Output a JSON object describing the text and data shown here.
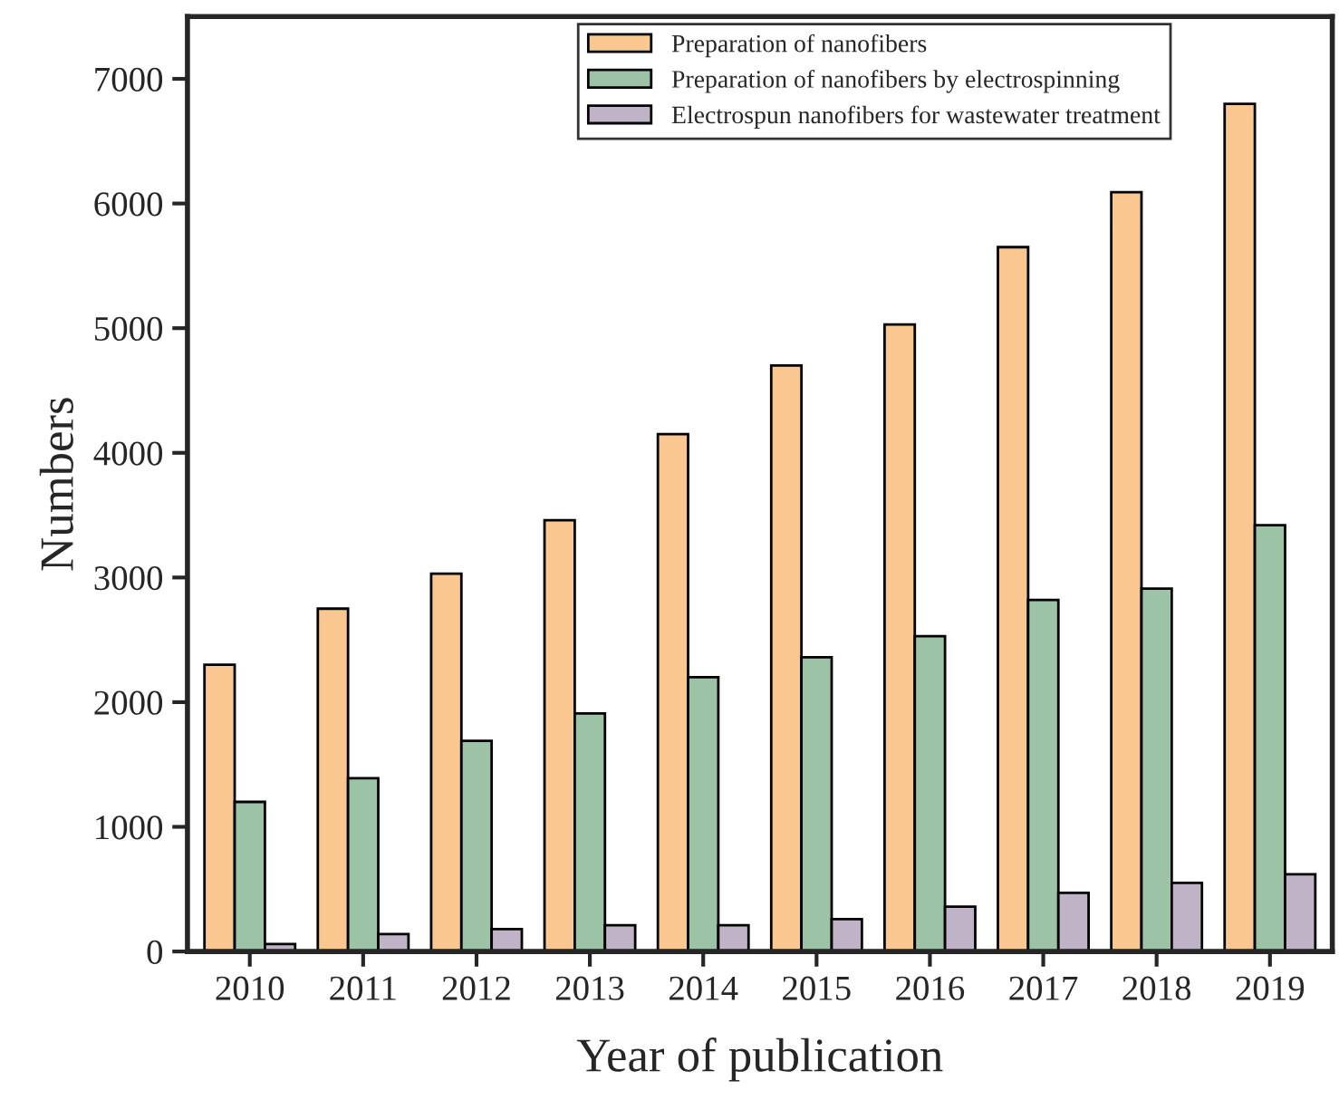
{
  "chart_data": {
    "type": "bar",
    "xlabel": "Year of publication",
    "ylabel": "Numbers",
    "categories": [
      "2010",
      "2011",
      "2012",
      "2013",
      "2014",
      "2015",
      "2016",
      "2017",
      "2018",
      "2019"
    ],
    "series": [
      {
        "name": "Preparation of nanofibers",
        "color": "#f9c78f",
        "values": [
          2300,
          2750,
          3030,
          3460,
          4150,
          4700,
          5030,
          5650,
          6090,
          6800
        ]
      },
      {
        "name": "Preparation of nanofibers by electrospinning",
        "color": "#9dc3a6",
        "values": [
          1200,
          1390,
          1690,
          1910,
          2200,
          2360,
          2530,
          2820,
          2910,
          3420
        ]
      },
      {
        "name": "Electrospun nanofibers for wastewater treatment",
        "color": "#c0b3c8",
        "values": [
          60,
          140,
          180,
          210,
          210,
          260,
          360,
          470,
          550,
          620
        ]
      }
    ],
    "ylim": [
      0,
      7500
    ],
    "yticks": [
      0,
      1000,
      2000,
      3000,
      4000,
      5000,
      6000,
      7000
    ],
    "grid": false,
    "legend": "top"
  }
}
